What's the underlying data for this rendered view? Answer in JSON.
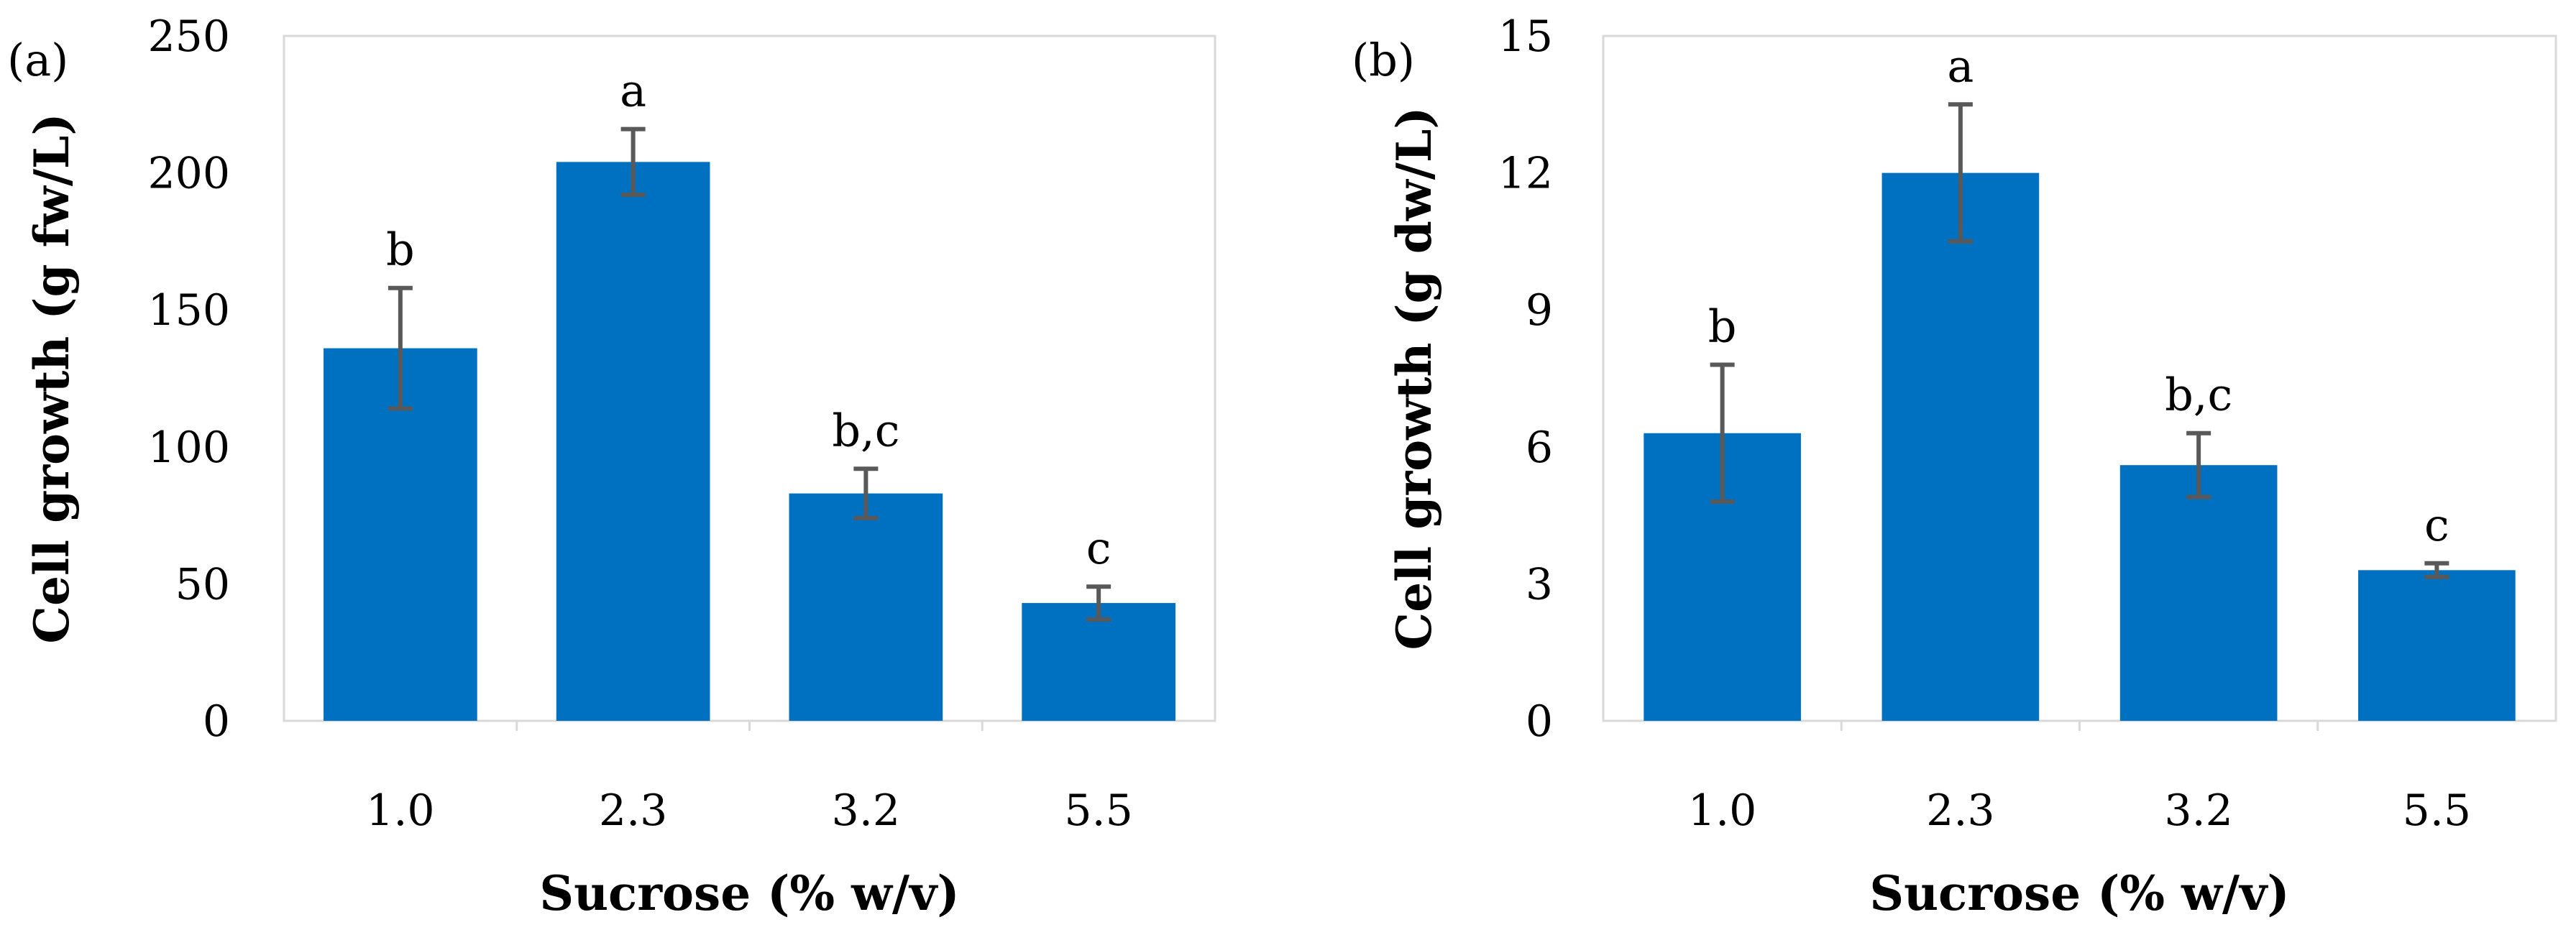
{
  "chart_data": [
    {
      "panel": "(a)",
      "type": "bar",
      "categories": [
        "1.0",
        "2.3",
        "3.2",
        "5.5"
      ],
      "values": [
        136,
        204,
        83,
        43
      ],
      "errors": [
        22,
        12,
        9,
        6
      ],
      "significance": [
        "b",
        "a",
        "b,c",
        "c"
      ],
      "xlabel": "Sucrose (% w/v)",
      "ylabel": "Cell growth (g fw/L)",
      "ylim": [
        0,
        250
      ],
      "yticks": [
        0,
        50,
        100,
        150,
        200,
        250
      ],
      "bar_color": "#0070c0",
      "error_color": "#595959",
      "grid": false
    },
    {
      "panel": "(b)",
      "type": "bar",
      "categories": [
        "1.0",
        "2.3",
        "3.2",
        "5.5"
      ],
      "values": [
        6.3,
        12.0,
        5.6,
        3.3
      ],
      "errors": [
        1.5,
        1.5,
        0.7,
        0.15
      ],
      "significance": [
        "b",
        "a",
        "b,c",
        "c"
      ],
      "xlabel": "Sucrose (% w/v)",
      "ylabel": "Cell growth (g dw/L)",
      "ylim": [
        0,
        15
      ],
      "yticks": [
        0,
        3,
        6,
        9,
        12,
        15
      ],
      "bar_color": "#0070c0",
      "error_color": "#595959",
      "grid": false
    }
  ]
}
